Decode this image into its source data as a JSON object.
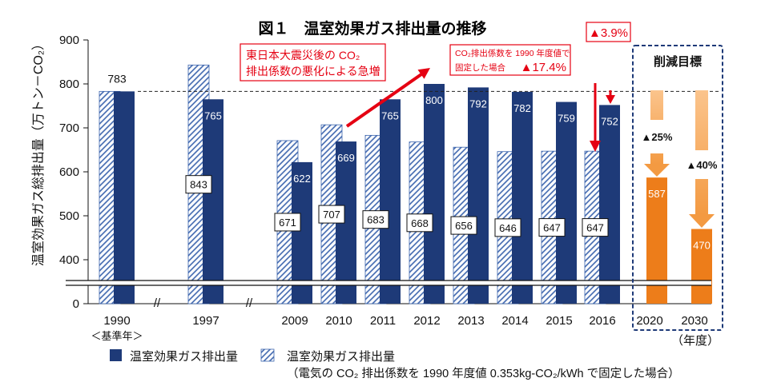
{
  "chart_data": {
    "type": "bar",
    "title": "図１　温室効果ガス排出量の推移",
    "ylabel": "温室効果ガス総排出量（万トン－CO₂）",
    "xlabel": "（年度）",
    "categories": [
      "1990",
      "1997",
      "2009",
      "2010",
      "2011",
      "2012",
      "2013",
      "2014",
      "2015",
      "2016",
      "2020",
      "2030"
    ],
    "base_year_note": "＜基準年＞",
    "axis_break_mark": "//",
    "y_ticks": [
      900,
      800,
      700,
      600,
      500,
      400,
      0
    ],
    "ylim": [
      0,
      900
    ],
    "y_axis_break": [
      0,
      400
    ],
    "grid": false,
    "legend": "bottom",
    "reference_line": {
      "value": 783,
      "dashed": true
    },
    "series": [
      {
        "name": "温室効果ガス排出量",
        "color": "#1E3A78",
        "values": [
          783,
          765,
          622,
          669,
          765,
          800,
          792,
          782,
          759,
          752,
          null,
          null
        ]
      },
      {
        "name": "温室効果ガス排出量",
        "note": "（電気の CO₂ 排出係数を 1990 年度値 0.353kg-CO₂/kWh で固定した場合）",
        "color": "#3B64AD",
        "pattern": "hatched",
        "values": [
          783,
          843,
          671,
          707,
          683,
          668,
          656,
          646,
          647,
          647,
          null,
          null
        ]
      },
      {
        "color": "#ED7D1A",
        "values": [
          null,
          null,
          null,
          null,
          null,
          null,
          null,
          null,
          null,
          null,
          587,
          470
        ]
      }
    ],
    "annotations": {
      "quake_note": {
        "line1": "東日本大震災後の CO₂",
        "line2": "排出係数の悪化による急増"
      },
      "fixed_factor_note": {
        "line1": "CO₂排出係数を 1990 年度値で",
        "line2": "固定した場合",
        "change": "▲17.4%"
      },
      "actual_change": "▲3.9%",
      "target_box": {
        "label": "削減目標",
        "change_2020": "▲25%",
        "change_2030": "▲40%"
      }
    }
  },
  "colors": {
    "navy": "#1E3A78",
    "hatch": "#3B64AD",
    "orange_bar": "#ED7D1A",
    "orange_arrow": "#F39A42",
    "red": "#E50012",
    "target_box_border": "#1E3A78"
  }
}
